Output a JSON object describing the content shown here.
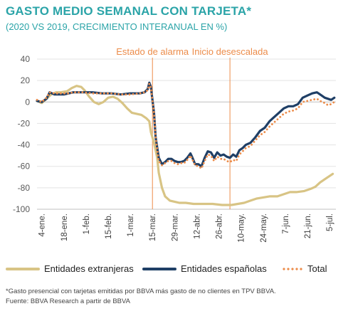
{
  "title": "GASTO MEDIO SEMANAL CON TARJETA*",
  "subtitle": "(2020 VS 2019, CRECIMIENTO INTERANUAL EN %)",
  "footnote": "*Gasto presencial con tarjetas emitidas por BBVA más gasto de no clientes en TPV BBVA.",
  "source": "Fuente: BBVA Research a partir de BBVA",
  "colors": {
    "title": "#2ba4a8",
    "extranjeras": "#d8c485",
    "espanolas": "#1f3f66",
    "total": "#ec8c4a",
    "annotation": "#ec8c4a",
    "vline": "#ec8c4a"
  },
  "legend": [
    {
      "label": "Entidades extranjeras",
      "color": "#d8c485",
      "style": "solid"
    },
    {
      "label": "Entidades españolas",
      "color": "#1f3f66",
      "style": "solid"
    },
    {
      "label": "Total",
      "color": "#ec8c4a",
      "style": "dotted"
    }
  ],
  "chart_data": {
    "type": "line",
    "ylim": [
      -100,
      40
    ],
    "yticks": [
      40,
      20,
      0,
      -20,
      -40,
      -60,
      -80,
      -100
    ],
    "xlim": [
      1,
      190
    ],
    "xtick_labels": [
      "4-ene.",
      "18-ene.",
      "1-feb.",
      "15-feb.",
      "1-mar.",
      "15-mar.",
      "29-mar.",
      "12-abr.",
      "26-abr.",
      "10-may.",
      "24-may.",
      "7-jun.",
      "21-jun.",
      "5-jul."
    ],
    "xtick_positions": [
      4,
      18,
      32,
      46,
      60,
      74,
      88,
      102,
      116,
      130,
      144,
      158,
      172,
      186
    ],
    "annotations": [
      {
        "label": "Estado de alarma",
        "x": 74
      },
      {
        "label": "Inicio desescalada",
        "x": 123
      }
    ],
    "series": [
      {
        "name": "Entidades extranjeras",
        "color": "#d8c485",
        "style": "solid",
        "points": [
          [
            1,
            1
          ],
          [
            4,
            -1
          ],
          [
            7,
            3
          ],
          [
            10,
            7
          ],
          [
            13,
            9
          ],
          [
            16,
            9
          ],
          [
            20,
            10
          ],
          [
            23,
            13
          ],
          [
            26,
            15
          ],
          [
            29,
            14
          ],
          [
            31,
            11
          ],
          [
            34,
            5
          ],
          [
            37,
            0
          ],
          [
            40,
            -2
          ],
          [
            43,
            0
          ],
          [
            46,
            4
          ],
          [
            49,
            5
          ],
          [
            52,
            3
          ],
          [
            55,
            -1
          ],
          [
            58,
            -6
          ],
          [
            61,
            -10
          ],
          [
            64,
            -11
          ],
          [
            67,
            -12
          ],
          [
            70,
            -15
          ],
          [
            72,
            -18
          ],
          [
            73,
            -28
          ],
          [
            75,
            -38
          ],
          [
            77,
            -52
          ],
          [
            78,
            -66
          ],
          [
            80,
            -80
          ],
          [
            82,
            -88
          ],
          [
            85,
            -92
          ],
          [
            88,
            -93
          ],
          [
            91,
            -94
          ],
          [
            95,
            -94
          ],
          [
            100,
            -95
          ],
          [
            106,
            -95
          ],
          [
            112,
            -95
          ],
          [
            118,
            -96
          ],
          [
            124,
            -96
          ],
          [
            128,
            -95
          ],
          [
            132,
            -94
          ],
          [
            136,
            -92
          ],
          [
            140,
            -90
          ],
          [
            144,
            -89
          ],
          [
            148,
            -88
          ],
          [
            153,
            -88
          ],
          [
            157,
            -86
          ],
          [
            161,
            -84
          ],
          [
            165,
            -84
          ],
          [
            170,
            -83
          ],
          [
            174,
            -81
          ],
          [
            177,
            -79
          ],
          [
            180,
            -75
          ],
          [
            183,
            -72
          ],
          [
            186,
            -69
          ],
          [
            188,
            -67
          ]
        ]
      },
      {
        "name": "Entidades españolas",
        "color": "#1f3f66",
        "style": "solid",
        "points": [
          [
            1,
            1
          ],
          [
            4,
            0
          ],
          [
            7,
            3
          ],
          [
            9,
            9
          ],
          [
            12,
            7
          ],
          [
            15,
            7
          ],
          [
            18,
            7
          ],
          [
            21,
            8
          ],
          [
            24,
            9
          ],
          [
            30,
            9
          ],
          [
            36,
            9
          ],
          [
            42,
            8
          ],
          [
            48,
            8
          ],
          [
            54,
            7
          ],
          [
            60,
            8
          ],
          [
            66,
            8
          ],
          [
            69,
            9
          ],
          [
            71,
            12
          ],
          [
            72,
            18
          ],
          [
            73,
            14
          ],
          [
            75,
            -10
          ],
          [
            76,
            -33
          ],
          [
            78,
            -52
          ],
          [
            80,
            -58
          ],
          [
            82,
            -56
          ],
          [
            84,
            -53
          ],
          [
            86,
            -53
          ],
          [
            88,
            -55
          ],
          [
            90,
            -56
          ],
          [
            92,
            -56
          ],
          [
            94,
            -55
          ],
          [
            96,
            -52
          ],
          [
            98,
            -48
          ],
          [
            99,
            -51
          ],
          [
            101,
            -58
          ],
          [
            103,
            -58
          ],
          [
            105,
            -60
          ],
          [
            107,
            -52
          ],
          [
            109,
            -46
          ],
          [
            111,
            -47
          ],
          [
            113,
            -52
          ],
          [
            115,
            -47
          ],
          [
            117,
            -50
          ],
          [
            119,
            -49
          ],
          [
            121,
            -51
          ],
          [
            123,
            -52
          ],
          [
            125,
            -49
          ],
          [
            127,
            -51
          ],
          [
            129,
            -45
          ],
          [
            131,
            -43
          ],
          [
            133,
            -40
          ],
          [
            136,
            -38
          ],
          [
            139,
            -33
          ],
          [
            142,
            -27
          ],
          [
            145,
            -24
          ],
          [
            148,
            -18
          ],
          [
            151,
            -14
          ],
          [
            154,
            -10
          ],
          [
            157,
            -6
          ],
          [
            160,
            -4
          ],
          [
            163,
            -4
          ],
          [
            166,
            -2
          ],
          [
            169,
            4
          ],
          [
            172,
            6
          ],
          [
            175,
            8
          ],
          [
            178,
            9
          ],
          [
            180,
            7
          ],
          [
            183,
            4
          ],
          [
            185,
            3
          ],
          [
            187,
            2
          ],
          [
            189,
            4
          ]
        ]
      },
      {
        "name": "Total",
        "color": "#ec8c4a",
        "style": "dotted",
        "points": [
          [
            1,
            2
          ],
          [
            4,
            0
          ],
          [
            7,
            4
          ],
          [
            9,
            9
          ],
          [
            12,
            8
          ],
          [
            15,
            8
          ],
          [
            18,
            8
          ],
          [
            21,
            8
          ],
          [
            24,
            9
          ],
          [
            30,
            9
          ],
          [
            36,
            8
          ],
          [
            42,
            8
          ],
          [
            48,
            8
          ],
          [
            54,
            7
          ],
          [
            60,
            7
          ],
          [
            66,
            8
          ],
          [
            69,
            9
          ],
          [
            71,
            11
          ],
          [
            72,
            17
          ],
          [
            73,
            13
          ],
          [
            75,
            -10
          ],
          [
            76,
            -33
          ],
          [
            78,
            -55
          ],
          [
            80,
            -59
          ],
          [
            82,
            -57
          ],
          [
            84,
            -55
          ],
          [
            86,
            -55
          ],
          [
            88,
            -57
          ],
          [
            90,
            -58
          ],
          [
            92,
            -57
          ],
          [
            94,
            -57
          ],
          [
            96,
            -54
          ],
          [
            98,
            -50
          ],
          [
            99,
            -53
          ],
          [
            101,
            -59
          ],
          [
            103,
            -60
          ],
          [
            105,
            -62
          ],
          [
            107,
            -55
          ],
          [
            109,
            -49
          ],
          [
            111,
            -50
          ],
          [
            113,
            -55
          ],
          [
            115,
            -51
          ],
          [
            117,
            -53
          ],
          [
            119,
            -53
          ],
          [
            121,
            -55
          ],
          [
            123,
            -56
          ],
          [
            125,
            -54
          ],
          [
            127,
            -55
          ],
          [
            129,
            -49
          ],
          [
            131,
            -46
          ],
          [
            133,
            -43
          ],
          [
            136,
            -41
          ],
          [
            139,
            -36
          ],
          [
            142,
            -31
          ],
          [
            145,
            -28
          ],
          [
            148,
            -23
          ],
          [
            151,
            -19
          ],
          [
            154,
            -15
          ],
          [
            157,
            -11
          ],
          [
            160,
            -9
          ],
          [
            163,
            -8
          ],
          [
            166,
            -6
          ],
          [
            169,
            0
          ],
          [
            172,
            1
          ],
          [
            175,
            2
          ],
          [
            178,
            3
          ],
          [
            180,
            1
          ],
          [
            183,
            -1
          ],
          [
            185,
            -3
          ],
          [
            187,
            -2
          ],
          [
            189,
            0
          ]
        ]
      }
    ]
  }
}
